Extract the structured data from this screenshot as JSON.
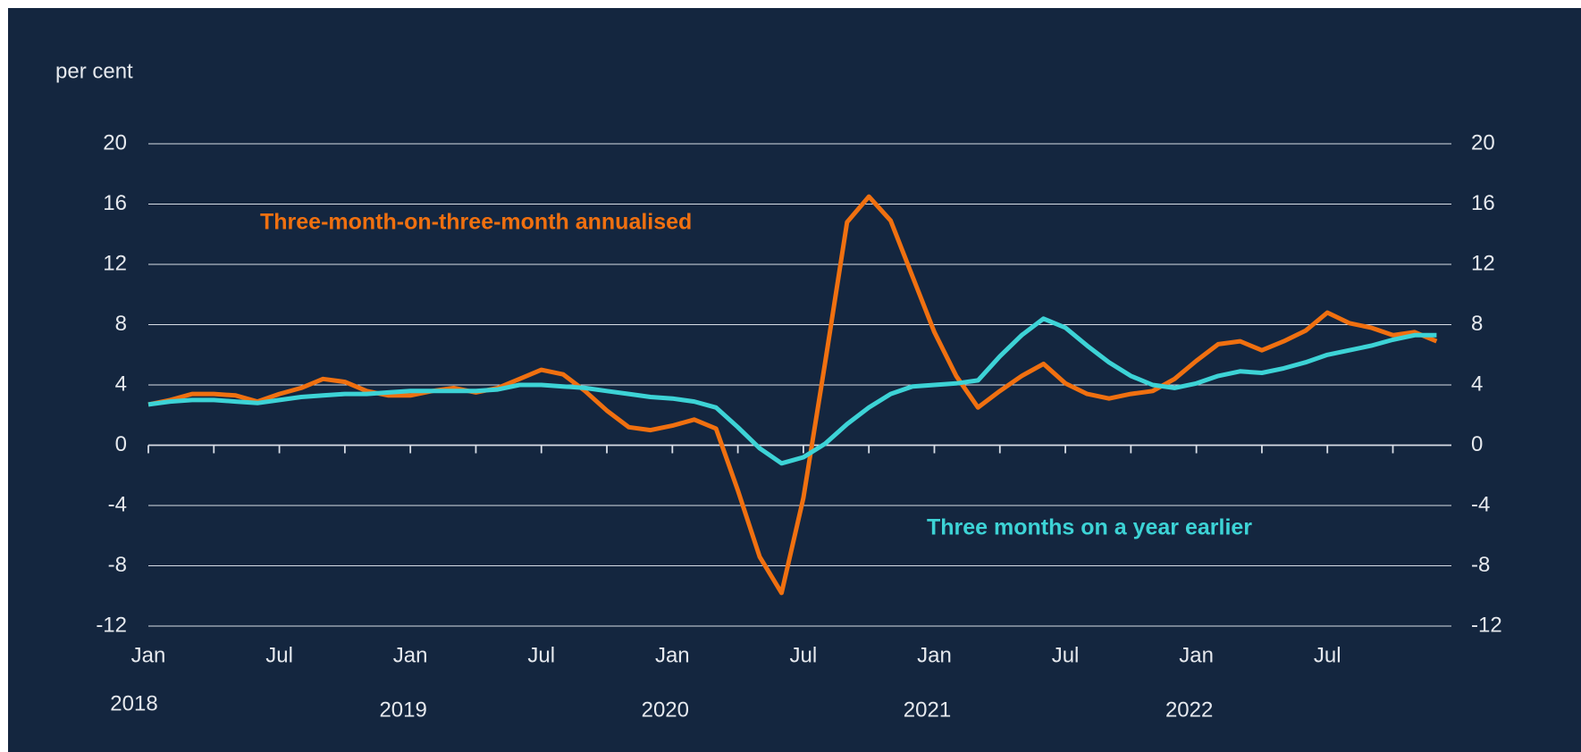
{
  "chart_data": {
    "type": "line",
    "y_axis_label": "per cent",
    "categories": [
      "Jan",
      null,
      null,
      null,
      null,
      null,
      "Jul",
      null,
      null,
      null,
      null,
      null,
      "Jan",
      null,
      null,
      null,
      null,
      null,
      "Jul",
      null,
      null,
      null,
      null,
      null,
      "Jan",
      null,
      null,
      null,
      null,
      null,
      "Jul",
      null,
      null,
      null,
      null,
      null,
      "Jan",
      null,
      null,
      null,
      null,
      null,
      "Jul",
      null,
      null,
      null,
      null,
      null,
      "Jan",
      null,
      null,
      null,
      null,
      null,
      "Jul",
      null,
      null,
      null,
      null,
      null
    ],
    "years": [
      "2018",
      "2019",
      "2020",
      "2021",
      "2022"
    ],
    "series": [
      {
        "name": "Three-month-on-three-month annualised",
        "color": "#f07010",
        "values": [
          2.7,
          3.0,
          3.4,
          3.4,
          3.3,
          2.9,
          3.4,
          3.8,
          4.4,
          4.2,
          3.6,
          3.3,
          3.3,
          3.6,
          3.8,
          3.5,
          3.8,
          4.4,
          5.0,
          4.7,
          3.6,
          2.3,
          1.2,
          1.0,
          1.3,
          1.7,
          1.1,
          -3.0,
          -7.4,
          -9.8,
          -3.5,
          5.5,
          14.8,
          16.5,
          14.9,
          11.2,
          7.5,
          4.6,
          2.5,
          3.6,
          4.6,
          5.4,
          4.1,
          3.4,
          3.1,
          3.4,
          3.6,
          4.4,
          5.6,
          6.7,
          6.9,
          6.3,
          6.9,
          7.6,
          8.8,
          8.1,
          7.8,
          7.3,
          7.5,
          6.9
        ]
      },
      {
        "name": "Three months on a year earlier",
        "color": "#3dd3d6",
        "values": [
          2.7,
          2.9,
          3.0,
          3.0,
          2.9,
          2.8,
          3.0,
          3.2,
          3.3,
          3.4,
          3.4,
          3.5,
          3.6,
          3.6,
          3.6,
          3.6,
          3.7,
          4.0,
          4.0,
          3.9,
          3.8,
          3.6,
          3.4,
          3.2,
          3.1,
          2.9,
          2.5,
          1.2,
          -0.2,
          -1.2,
          -0.8,
          0.1,
          1.4,
          2.5,
          3.4,
          3.9,
          4.0,
          4.1,
          4.3,
          5.9,
          7.3,
          8.4,
          7.8,
          6.6,
          5.5,
          4.6,
          4.0,
          3.8,
          4.1,
          4.6,
          4.9,
          4.8,
          5.1,
          5.5,
          6.0,
          6.3,
          6.6,
          7.0,
          7.3,
          7.3
        ]
      }
    ],
    "ylim": [
      -12,
      20
    ],
    "yticks": [
      -12,
      -8,
      -4,
      0,
      4,
      8,
      12,
      16,
      20
    ],
    "grid": true,
    "background": "#14263f"
  }
}
